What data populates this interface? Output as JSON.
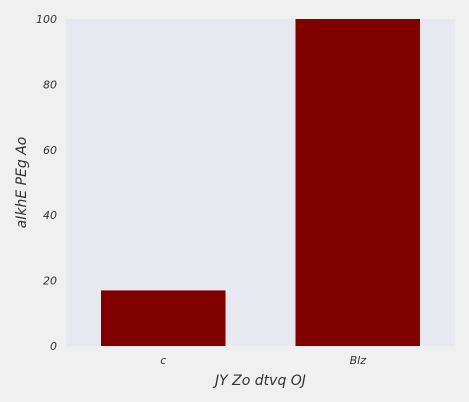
{
  "chart_data": {
    "type": "bar",
    "title": "",
    "xlabel": "JY Zo dtvq OJ",
    "ylabel": "aIkhE PEg Ao",
    "categories": [
      "c",
      "Blz"
    ],
    "values": [
      17,
      100
    ],
    "ylim": [
      0,
      100
    ],
    "yticks": [
      0,
      20,
      40,
      60,
      80,
      100
    ],
    "grid": false,
    "legend": "none",
    "colors": {
      "bar": "#800000",
      "plot_background": "#e8e8f0",
      "figure_background": "#f0f0f0"
    }
  }
}
